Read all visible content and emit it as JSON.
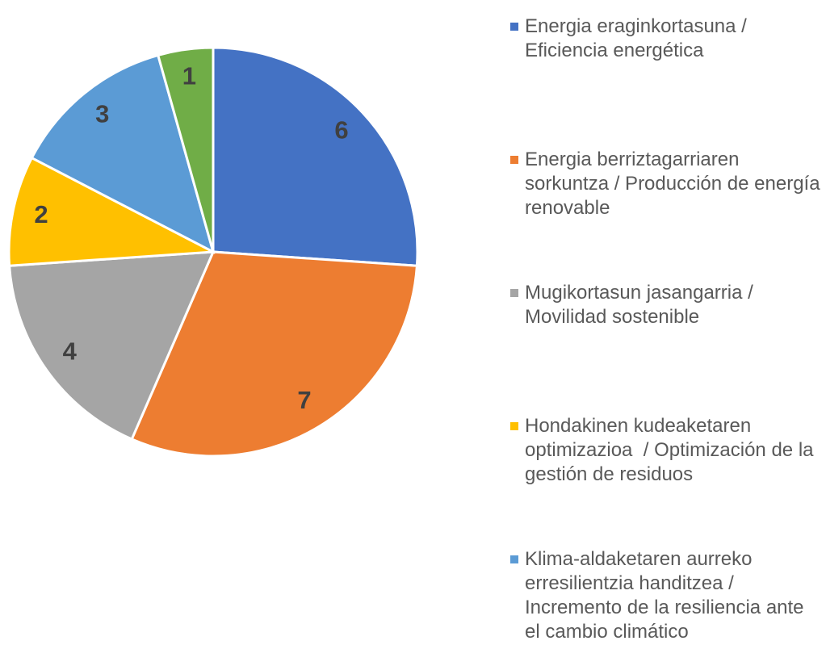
{
  "chart_data": {
    "type": "pie",
    "categories": [
      "Energia eraginkortasuna / Eficiencia energética",
      "Energia berriztagarriaren sorkuntza / Producción de energía renovable",
      "Mugikortasun jasangarria / Movilidad sostenible",
      "Hondakinen kudeaketaren optimizazioa  / Optimización de la gestión de residuos",
      "Klima-aldaketaren aurreko erresilientzia handitzea / Incremento de la resiliencia ante el cambio climático",
      null
    ],
    "values": [
      6,
      7,
      4,
      2,
      3,
      1
    ],
    "colors": [
      "#4472c4",
      "#ed7d31",
      "#a5a5a5",
      "#ffc000",
      "#5b9bd5",
      "#70ad47"
    ],
    "legend": "right"
  }
}
